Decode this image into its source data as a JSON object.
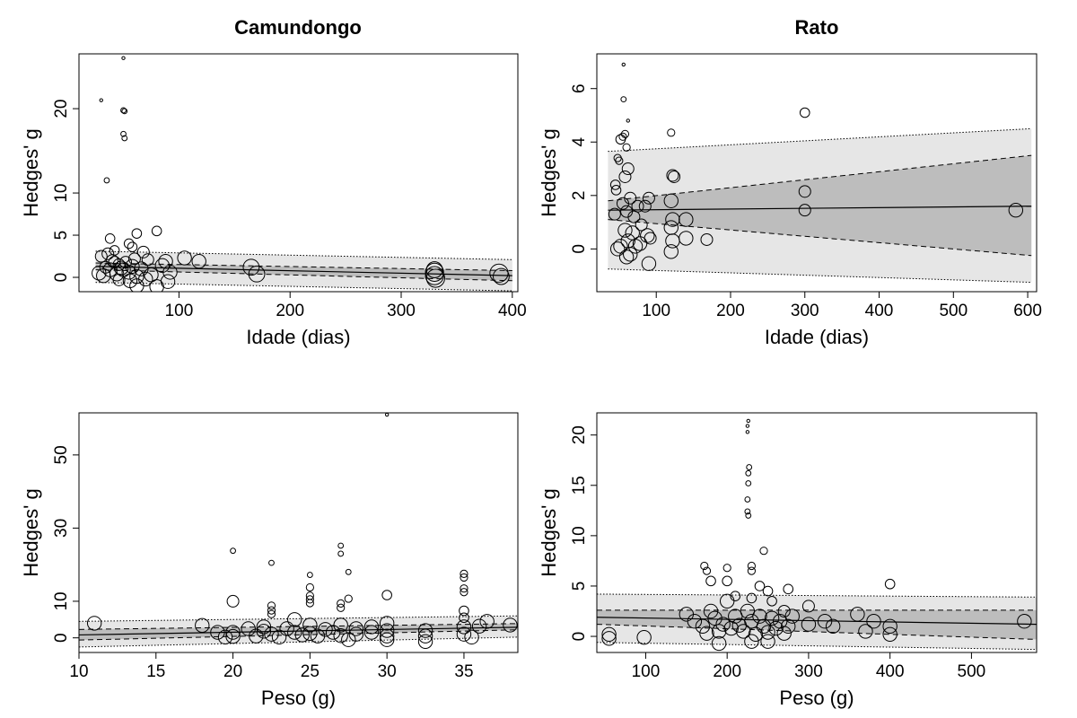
{
  "column_titles": [
    "Camundongo",
    "Rato"
  ],
  "colors": {
    "ci_band": "#bdbdbd",
    "pi_band": "#e6e6e6",
    "line": "#000000",
    "point_stroke": "#000000",
    "background": "#ffffff"
  },
  "chart_data": [
    {
      "type": "scatter",
      "title": "Camundongo",
      "xlabel": "Idade (dias)",
      "ylabel": "Hedges' g",
      "xlim": [
        10,
        405
      ],
      "ylim": [
        -1.7,
        26.5
      ],
      "xticks": [
        100,
        200,
        300,
        400
      ],
      "yticks": [
        0,
        5,
        10,
        20
      ],
      "grid": false,
      "fit": {
        "x": [
          25,
          400
        ],
        "y": [
          1.3,
          0.2
        ]
      },
      "ci": {
        "upper": [
          1.7,
          0.8
        ],
        "lower": [
          0.9,
          -0.4
        ]
      },
      "pi": {
        "upper": [
          3.1,
          2.1
        ],
        "lower": [
          -0.6,
          -1.6
        ]
      },
      "points": [
        [
          30,
          21,
          1
        ],
        [
          35,
          11.5,
          2
        ],
        [
          50,
          26,
          1
        ],
        [
          50,
          19.8,
          2
        ],
        [
          51,
          19.7,
          2
        ],
        [
          50,
          17,
          2
        ],
        [
          51,
          16.5,
          2
        ],
        [
          38,
          4.6,
          4
        ],
        [
          62,
          5.2,
          4
        ],
        [
          80,
          5.5,
          4
        ],
        [
          55,
          4,
          4
        ],
        [
          42,
          3.2,
          4
        ],
        [
          58,
          3.6,
          4
        ],
        [
          30,
          2.5,
          5
        ],
        [
          36,
          2.8,
          5
        ],
        [
          40,
          2,
          5
        ],
        [
          46,
          1.5,
          5
        ],
        [
          52,
          1.8,
          5
        ],
        [
          60,
          2.2,
          5
        ],
        [
          68,
          3,
          5
        ],
        [
          72,
          2.1,
          5
        ],
        [
          28,
          0.5,
          6
        ],
        [
          32,
          0.2,
          6
        ],
        [
          38,
          0.9,
          6
        ],
        [
          44,
          0.4,
          6
        ],
        [
          48,
          1.1,
          6
        ],
        [
          55,
          0.6,
          6
        ],
        [
          58,
          1.3,
          6
        ],
        [
          62,
          0.1,
          6
        ],
        [
          66,
          1,
          6
        ],
        [
          70,
          -0.2,
          6
        ],
        [
          75,
          0.3,
          6
        ],
        [
          85,
          1.4,
          6
        ],
        [
          88,
          1.9,
          6
        ],
        [
          92,
          0.6,
          6
        ],
        [
          90,
          -0.5,
          6
        ],
        [
          42,
          1.8,
          5
        ],
        [
          50,
          0.9,
          6
        ],
        [
          56,
          -0.4,
          6
        ],
        [
          62,
          -1,
          6
        ],
        [
          80,
          -1.1,
          6
        ],
        [
          34,
          1.2,
          5
        ],
        [
          46,
          -0.3,
          5
        ],
        [
          105,
          2.3,
          6
        ],
        [
          118,
          1.9,
          6
        ],
        [
          165,
          1.2,
          7
        ],
        [
          170,
          0.4,
          7
        ],
        [
          330,
          0.6,
          8
        ],
        [
          330,
          0.2,
          8
        ],
        [
          331,
          -0.1,
          8
        ],
        [
          330,
          0.9,
          7
        ],
        [
          388,
          0.5,
          8
        ],
        [
          390,
          0.1,
          7
        ]
      ]
    },
    {
      "type": "scatter",
      "title": "Rato",
      "xlabel": "Idade (dias)",
      "ylabel": "Hedges' g",
      "xlim": [
        20,
        612
      ],
      "ylim": [
        -1.6,
        7.3
      ],
      "xticks": [
        100,
        200,
        300,
        400,
        500,
        600
      ],
      "yticks": [
        0,
        2,
        4,
        6
      ],
      "grid": false,
      "fit": {
        "x": [
          35,
          605
        ],
        "y": [
          1.45,
          1.6
        ]
      },
      "ci": {
        "upper": [
          1.8,
          3.5
        ],
        "lower": [
          1.1,
          -0.25
        ]
      },
      "pi": {
        "upper": [
          3.65,
          4.5
        ],
        "lower": [
          -0.75,
          -1.25
        ]
      },
      "points": [
        [
          56,
          6.9,
          1
        ],
        [
          56,
          5.6,
          2
        ],
        [
          62,
          4.8,
          1
        ],
        [
          58,
          4.3,
          3
        ],
        [
          55,
          4.2,
          3
        ],
        [
          52,
          4.1,
          4
        ],
        [
          60,
          3.8,
          3
        ],
        [
          48,
          3.4,
          3
        ],
        [
          50,
          3.3,
          3
        ],
        [
          45,
          2.4,
          4
        ],
        [
          46,
          2.2,
          4
        ],
        [
          62,
          3,
          5
        ],
        [
          58,
          2.7,
          5
        ],
        [
          44,
          1.3,
          5
        ],
        [
          55,
          1.7,
          5
        ],
        [
          60,
          1.4,
          5
        ],
        [
          65,
          1.9,
          5
        ],
        [
          70,
          1.2,
          5
        ],
        [
          75,
          1.6,
          5
        ],
        [
          80,
          0.9,
          5
        ],
        [
          85,
          1.6,
          5
        ],
        [
          90,
          1.9,
          5
        ],
        [
          92,
          0.4,
          5
        ],
        [
          58,
          0.7,
          6
        ],
        [
          62,
          0.3,
          6
        ],
        [
          65,
          -0.2,
          6
        ],
        [
          68,
          0.6,
          6
        ],
        [
          72,
          0.1,
          6
        ],
        [
          78,
          0.2,
          6
        ],
        [
          88,
          0.5,
          6
        ],
        [
          48,
          0,
          6
        ],
        [
          52,
          0.1,
          6
        ],
        [
          60,
          -0.3,
          6
        ],
        [
          90,
          -0.55,
          6
        ],
        [
          120,
          4.35,
          3
        ],
        [
          122,
          2.75,
          5
        ],
        [
          124,
          2.7,
          5
        ],
        [
          120,
          1.8,
          6
        ],
        [
          122,
          1.1,
          6
        ],
        [
          120,
          0.8,
          6
        ],
        [
          122,
          0.3,
          6
        ],
        [
          120,
          -0.1,
          6
        ],
        [
          140,
          1.1,
          6
        ],
        [
          140,
          0.4,
          6
        ],
        [
          168,
          0.35,
          5
        ],
        [
          300,
          5.1,
          4
        ],
        [
          300,
          2.15,
          5
        ],
        [
          300,
          1.45,
          5
        ],
        [
          584,
          1.45,
          6
        ]
      ]
    },
    {
      "type": "scatter",
      "title": "",
      "xlabel": "Peso (g)",
      "ylabel": "Hedges' g",
      "xlim": [
        10,
        38.5
      ],
      "ylim": [
        -4,
        61.5
      ],
      "xticks": [
        10,
        15,
        20,
        25,
        30,
        35
      ],
      "yticks": [
        0,
        10,
        30,
        50
      ],
      "grid": false,
      "fit": {
        "x": [
          10,
          38.5
        ],
        "y": [
          0.8,
          2.9
        ]
      },
      "ci": {
        "upper": [
          2.3,
          3.9
        ],
        "lower": [
          -0.6,
          2.2
        ]
      },
      "pi": {
        "upper": [
          4.5,
          6
        ],
        "lower": [
          -2.5,
          0.2
        ]
      },
      "points": [
        [
          30,
          61,
          1
        ],
        [
          20,
          23.8,
          2
        ],
        [
          27,
          25.2,
          2
        ],
        [
          27,
          23,
          2
        ],
        [
          22.5,
          20.5,
          2
        ],
        [
          27.5,
          18,
          2
        ],
        [
          25,
          17.2,
          2
        ],
        [
          25,
          13.8,
          3
        ],
        [
          25,
          11.5,
          3
        ],
        [
          25,
          10.5,
          3
        ],
        [
          25,
          9.5,
          3
        ],
        [
          27.5,
          10.7,
          3
        ],
        [
          27,
          9.4,
          3
        ],
        [
          27,
          8.2,
          3
        ],
        [
          22.5,
          8.8,
          3
        ],
        [
          22.5,
          7.5,
          3
        ],
        [
          22.5,
          6.5,
          3
        ],
        [
          35,
          17.5,
          3
        ],
        [
          35,
          16.5,
          3
        ],
        [
          35,
          13.5,
          3
        ],
        [
          35,
          12.5,
          3
        ],
        [
          30,
          11.7,
          4
        ],
        [
          20,
          10,
          5
        ],
        [
          35,
          7.4,
          4
        ],
        [
          35,
          5.5,
          4
        ],
        [
          11,
          4,
          6
        ],
        [
          18,
          3.4,
          6
        ],
        [
          19,
          1.5,
          6
        ],
        [
          19.5,
          0.2,
          6
        ],
        [
          20,
          1.5,
          6
        ],
        [
          20,
          0.4,
          6
        ],
        [
          21,
          2.5,
          6
        ],
        [
          21.5,
          0.5,
          6
        ],
        [
          22,
          1.8,
          6
        ],
        [
          22,
          3,
          6
        ],
        [
          22.5,
          1,
          6
        ],
        [
          23,
          0.2,
          6
        ],
        [
          23.5,
          2.5,
          6
        ],
        [
          24,
          1.5,
          6
        ],
        [
          24,
          5,
          6
        ],
        [
          24.5,
          0.8,
          6
        ],
        [
          25,
          1.2,
          6
        ],
        [
          25,
          3.5,
          6
        ],
        [
          25.5,
          0.5,
          6
        ],
        [
          26,
          2.3,
          6
        ],
        [
          26.5,
          1.5,
          6
        ],
        [
          27,
          0.6,
          6
        ],
        [
          27,
          3.5,
          6
        ],
        [
          27.5,
          -0.5,
          6
        ],
        [
          28,
          1,
          6
        ],
        [
          28,
          2.5,
          6
        ],
        [
          29,
          1.5,
          6
        ],
        [
          29,
          3,
          6
        ],
        [
          30,
          0.5,
          6
        ],
        [
          30,
          2,
          6
        ],
        [
          30,
          -0.5,
          6
        ],
        [
          30,
          4,
          6
        ],
        [
          32.5,
          2,
          6
        ],
        [
          32.5,
          0.5,
          6
        ],
        [
          32.5,
          -1,
          6
        ],
        [
          35,
          1,
          6
        ],
        [
          35,
          3,
          6
        ],
        [
          35.5,
          0.2,
          6
        ],
        [
          36,
          3.2,
          6
        ],
        [
          36.5,
          4.5,
          6
        ],
        [
          38,
          3.5,
          6
        ]
      ]
    },
    {
      "type": "scatter",
      "title": "",
      "xlabel": "Peso (g)",
      "ylabel": "Hedges' g",
      "xlim": [
        40,
        580
      ],
      "ylim": [
        -1.6,
        22.2
      ],
      "xticks": [
        100,
        200,
        300,
        400,
        500
      ],
      "yticks": [
        0,
        5,
        10,
        15,
        20
      ],
      "grid": false,
      "fit": {
        "x": [
          40,
          580
        ],
        "y": [
          1.9,
          1.2
        ]
      },
      "ci": {
        "upper": [
          2.6,
          2.6
        ],
        "lower": [
          1.2,
          -0.3
        ]
      },
      "pi": {
        "upper": [
          4.2,
          3.9
        ],
        "lower": [
          -0.6,
          -1.3
        ]
      },
      "points": [
        [
          226,
          21.4,
          1
        ],
        [
          225,
          20.9,
          1
        ],
        [
          225,
          20.3,
          1
        ],
        [
          227,
          16.8,
          2
        ],
        [
          226,
          16.2,
          2
        ],
        [
          226,
          15.2,
          2
        ],
        [
          225,
          13.6,
          2
        ],
        [
          225,
          12.4,
          2
        ],
        [
          226,
          12,
          2
        ],
        [
          245,
          8.5,
          3
        ],
        [
          230,
          7,
          3
        ],
        [
          230,
          6.5,
          3
        ],
        [
          172,
          7,
          3
        ],
        [
          175,
          6.5,
          3
        ],
        [
          200,
          6.8,
          3
        ],
        [
          400,
          5.2,
          4
        ],
        [
          240,
          5,
          4
        ],
        [
          180,
          5.5,
          4
        ],
        [
          200,
          5.5,
          4
        ],
        [
          275,
          4.7,
          4
        ],
        [
          250,
          4.5,
          4
        ],
        [
          210,
          4,
          4
        ],
        [
          230,
          3.8,
          4
        ],
        [
          255,
          3.5,
          4
        ],
        [
          300,
          3,
          5
        ],
        [
          270,
          2.5,
          5
        ],
        [
          150,
          2.2,
          6
        ],
        [
          160,
          1.5,
          6
        ],
        [
          170,
          1,
          6
        ],
        [
          175,
          0.3,
          6
        ],
        [
          180,
          2.5,
          6
        ],
        [
          185,
          1.8,
          6
        ],
        [
          190,
          0.5,
          6
        ],
        [
          195,
          1.2,
          6
        ],
        [
          200,
          3.5,
          6
        ],
        [
          205,
          0.8,
          6
        ],
        [
          210,
          2,
          6
        ],
        [
          215,
          1.1,
          6
        ],
        [
          220,
          0.5,
          6
        ],
        [
          225,
          2.5,
          6
        ],
        [
          230,
          1.5,
          6
        ],
        [
          235,
          0.2,
          6
        ],
        [
          240,
          2,
          6
        ],
        [
          245,
          1,
          6
        ],
        [
          250,
          0.4,
          6
        ],
        [
          255,
          1.8,
          6
        ],
        [
          260,
          0.8,
          6
        ],
        [
          265,
          1.5,
          6
        ],
        [
          270,
          0.3,
          6
        ],
        [
          275,
          1,
          6
        ],
        [
          280,
          2,
          6
        ],
        [
          190,
          -0.7,
          6
        ],
        [
          230,
          -0.5,
          6
        ],
        [
          250,
          -0.5,
          6
        ],
        [
          300,
          1.2,
          6
        ],
        [
          320,
          1.5,
          6
        ],
        [
          330,
          1,
          6
        ],
        [
          360,
          2.2,
          6
        ],
        [
          370,
          0.5,
          6
        ],
        [
          380,
          1.5,
          6
        ],
        [
          400,
          1,
          6
        ],
        [
          400,
          0.2,
          6
        ],
        [
          98,
          -0.1,
          6
        ],
        [
          55,
          0.2,
          6
        ],
        [
          55,
          -0.2,
          6
        ],
        [
          565,
          1.5,
          6
        ]
      ]
    }
  ]
}
